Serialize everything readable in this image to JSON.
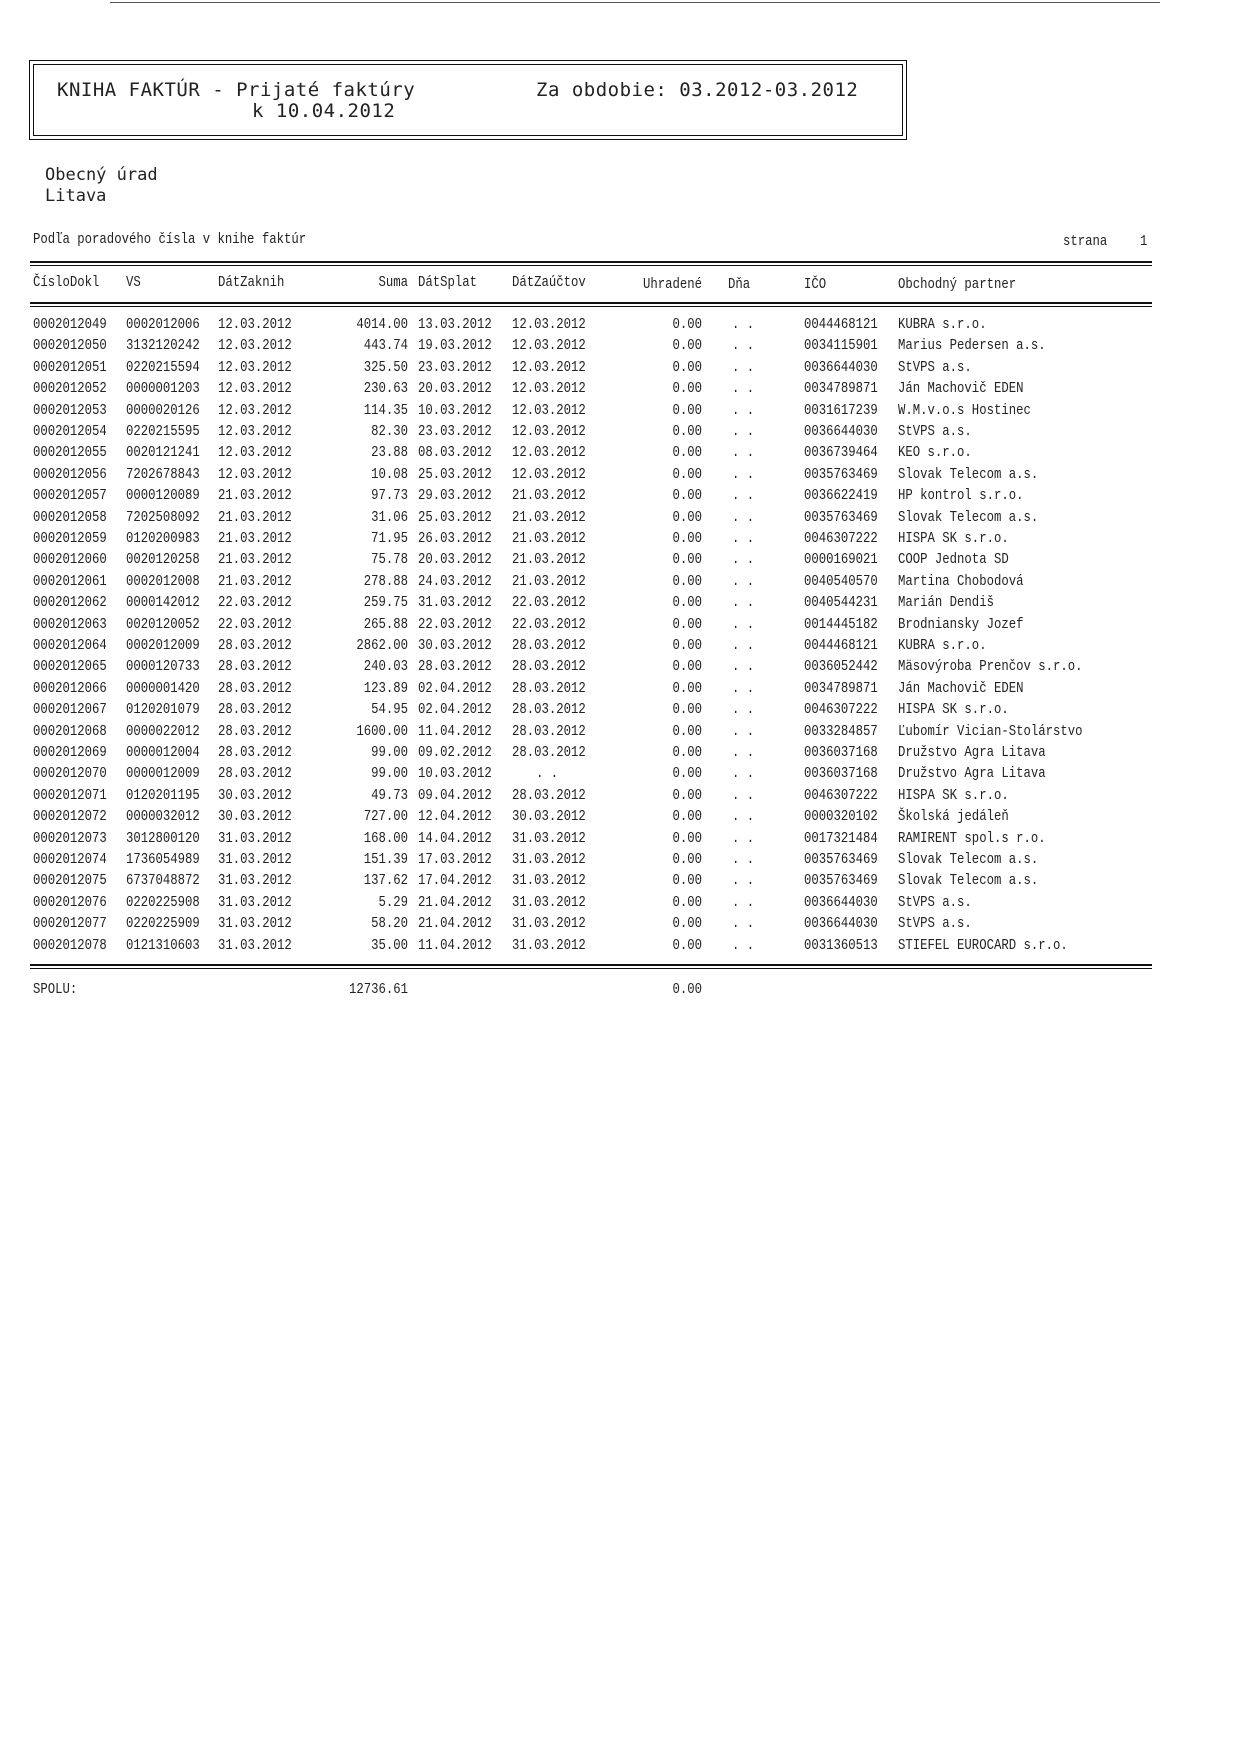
{
  "header": {
    "title": "KNIHA FAKTÚR - Prijaté faktúry",
    "date_line": "k 10.04.2012",
    "period": "Za obdobie: 03.2012-03.2012"
  },
  "organization": {
    "name": "Obecný úrad",
    "place": "Litava"
  },
  "sort_note": "Podľa poradového čísla v knihe faktúr",
  "page_label": "strana",
  "page_number": "1",
  "columns": [
    "ČísloDokl",
    "VS",
    "DátZaknih",
    "Suma",
    "DátSplat",
    "DátZaúčtov",
    "Uhradené",
    "Dňa",
    "IČO",
    "Obchodný partner"
  ],
  "rows": [
    [
      "0002012049",
      "0002012006",
      "12.03.2012",
      "4014.00",
      "13.03.2012",
      "12.03.2012",
      "0.00",
      ". .",
      "0044468121",
      "KUBRA s.r.o."
    ],
    [
      "0002012050",
      "3132120242",
      "12.03.2012",
      "443.74",
      "19.03.2012",
      "12.03.2012",
      "0.00",
      ". .",
      "0034115901",
      "Marius Pedersen a.s."
    ],
    [
      "0002012051",
      "0220215594",
      "12.03.2012",
      "325.50",
      "23.03.2012",
      "12.03.2012",
      "0.00",
      ". .",
      "0036644030",
      "StVPS a.s."
    ],
    [
      "0002012052",
      "0000001203",
      "12.03.2012",
      "230.63",
      "20.03.2012",
      "12.03.2012",
      "0.00",
      ". .",
      "0034789871",
      "Ján Machovič EDEN"
    ],
    [
      "0002012053",
      "0000020126",
      "12.03.2012",
      "114.35",
      "10.03.2012",
      "12.03.2012",
      "0.00",
      ". .",
      "0031617239",
      "W.M.v.o.s Hostinec"
    ],
    [
      "0002012054",
      "0220215595",
      "12.03.2012",
      "82.30",
      "23.03.2012",
      "12.03.2012",
      "0.00",
      ". .",
      "0036644030",
      "StVPS a.s."
    ],
    [
      "0002012055",
      "0020121241",
      "12.03.2012",
      "23.88",
      "08.03.2012",
      "12.03.2012",
      "0.00",
      ". .",
      "0036739464",
      "KEO s.r.o."
    ],
    [
      "0002012056",
      "7202678843",
      "12.03.2012",
      "10.08",
      "25.03.2012",
      "12.03.2012",
      "0.00",
      ". .",
      "0035763469",
      "Slovak Telecom a.s."
    ],
    [
      "0002012057",
      "0000120089",
      "21.03.2012",
      "97.73",
      "29.03.2012",
      "21.03.2012",
      "0.00",
      ". .",
      "0036622419",
      "HP kontrol s.r.o."
    ],
    [
      "0002012058",
      "7202508092",
      "21.03.2012",
      "31.06",
      "25.03.2012",
      "21.03.2012",
      "0.00",
      ". .",
      "0035763469",
      "Slovak Telecom a.s."
    ],
    [
      "0002012059",
      "0120200983",
      "21.03.2012",
      "71.95",
      "26.03.2012",
      "21.03.2012",
      "0.00",
      ". .",
      "0046307222",
      "HISPA SK s.r.o."
    ],
    [
      "0002012060",
      "0020120258",
      "21.03.2012",
      "75.78",
      "20.03.2012",
      "21.03.2012",
      "0.00",
      ". .",
      "0000169021",
      "COOP Jednota SD"
    ],
    [
      "0002012061",
      "0002012008",
      "21.03.2012",
      "278.88",
      "24.03.2012",
      "21.03.2012",
      "0.00",
      ". .",
      "0040540570",
      "Martina Chobodová"
    ],
    [
      "0002012062",
      "0000142012",
      "22.03.2012",
      "259.75",
      "31.03.2012",
      "22.03.2012",
      "0.00",
      ". .",
      "0040544231",
      "Marián Dendiš"
    ],
    [
      "0002012063",
      "0020120052",
      "22.03.2012",
      "265.88",
      "22.03.2012",
      "22.03.2012",
      "0.00",
      ". .",
      "0014445182",
      "Brodniansky Jozef"
    ],
    [
      "0002012064",
      "0002012009",
      "28.03.2012",
      "2862.00",
      "30.03.2012",
      "28.03.2012",
      "0.00",
      ". .",
      "0044468121",
      "KUBRA s.r.o."
    ],
    [
      "0002012065",
      "0000120733",
      "28.03.2012",
      "240.03",
      "28.03.2012",
      "28.03.2012",
      "0.00",
      ". .",
      "0036052442",
      "Mäsovýroba Prenčov s.r.o."
    ],
    [
      "0002012066",
      "0000001420",
      "28.03.2012",
      "123.89",
      "02.04.2012",
      "28.03.2012",
      "0.00",
      ". .",
      "0034789871",
      "Ján Machovič EDEN"
    ],
    [
      "0002012067",
      "0120201079",
      "28.03.2012",
      "54.95",
      "02.04.2012",
      "28.03.2012",
      "0.00",
      ". .",
      "0046307222",
      "HISPA SK s.r.o."
    ],
    [
      "0002012068",
      "0000022012",
      "28.03.2012",
      "1600.00",
      "11.04.2012",
      "28.03.2012",
      "0.00",
      ". .",
      "0033284857",
      "Ľubomír Vician-Stolárstvo"
    ],
    [
      "0002012069",
      "0000012004",
      "28.03.2012",
      "99.00",
      "09.02.2012",
      "28.03.2012",
      "0.00",
      ". .",
      "0036037168",
      "Družstvo Agra Litava"
    ],
    [
      "0002012070",
      "0000012009",
      "28.03.2012",
      "99.00",
      "10.03.2012",
      ". .",
      "0.00",
      ". .",
      "0036037168",
      "Družstvo Agra Litava"
    ],
    [
      "0002012071",
      "0120201195",
      "30.03.2012",
      "49.73",
      "09.04.2012",
      "28.03.2012",
      "0.00",
      ". .",
      "0046307222",
      "HISPA SK s.r.o."
    ],
    [
      "0002012072",
      "0000032012",
      "30.03.2012",
      "727.00",
      "12.04.2012",
      "30.03.2012",
      "0.00",
      ". .",
      "0000320102",
      "Školská jedáleň"
    ],
    [
      "0002012073",
      "3012800120",
      "31.03.2012",
      "168.00",
      "14.04.2012",
      "31.03.2012",
      "0.00",
      ". .",
      "0017321484",
      "RAMIRENT spol.s r.o."
    ],
    [
      "0002012074",
      "1736054989",
      "31.03.2012",
      "151.39",
      "17.03.2012",
      "31.03.2012",
      "0.00",
      ". .",
      "0035763469",
      "Slovak Telecom a.s."
    ],
    [
      "0002012075",
      "6737048872",
      "31.03.2012",
      "137.62",
      "17.04.2012",
      "31.03.2012",
      "0.00",
      ". .",
      "0035763469",
      "Slovak Telecom a.s."
    ],
    [
      "0002012076",
      "0220225908",
      "31.03.2012",
      "5.29",
      "21.04.2012",
      "31.03.2012",
      "0.00",
      ". .",
      "0036644030",
      "StVPS a.s."
    ],
    [
      "0002012077",
      "0220225909",
      "31.03.2012",
      "58.20",
      "21.04.2012",
      "31.03.2012",
      "0.00",
      ". .",
      "0036644030",
      "StVPS a.s."
    ],
    [
      "0002012078",
      "0121310603",
      "31.03.2012",
      "35.00",
      "11.04.2012",
      "31.03.2012",
      "0.00",
      ". .",
      "0031360513",
      "STIEFEL EUROCARD s.r.o."
    ]
  ],
  "totals": {
    "label": "SPOLU:",
    "suma": "12736.61",
    "uhradene": "0.00"
  }
}
